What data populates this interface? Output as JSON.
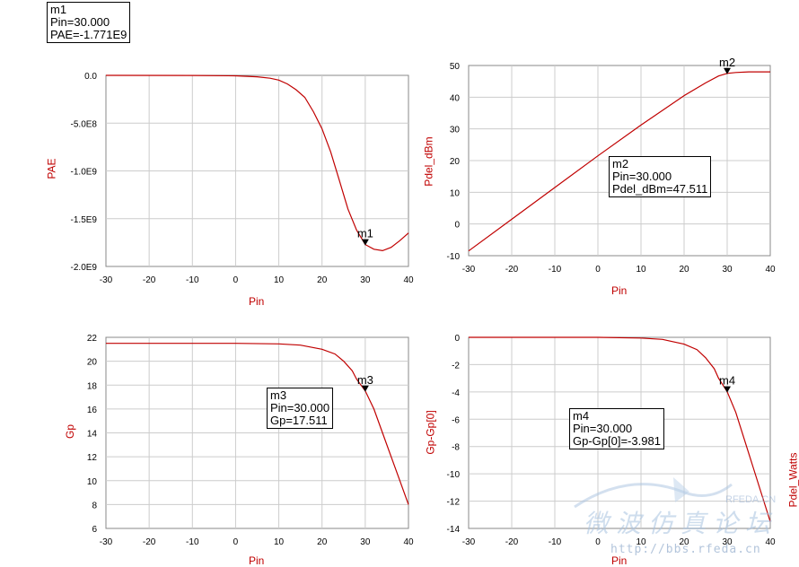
{
  "chart_data": [
    {
      "type": "line",
      "xlabel": "Pin",
      "ylabel": "PAE",
      "xlim": [
        -30,
        40
      ],
      "ylim": [
        -2000000000,
        0
      ],
      "x_ticks": [
        "-30",
        "-20",
        "-10",
        "0",
        "10",
        "20",
        "30",
        "40"
      ],
      "y_ticks": [
        "0.0",
        "-5.0E8",
        "-1.0E9",
        "-1.5E9",
        "-2.0E9"
      ],
      "series": [
        {
          "x": [
            -30,
            -10,
            0,
            5,
            8,
            10,
            12,
            14,
            16,
            18,
            20,
            22,
            24,
            26,
            28,
            30,
            32,
            34,
            36,
            38,
            40
          ],
          "y": [
            0,
            -1000000,
            -5000000,
            -15000000,
            -30000000,
            -50000000,
            -90000000,
            -150000000,
            -230000000,
            -380000000,
            -560000000,
            -800000000,
            -1100000000,
            -1400000000,
            -1620000000,
            -1771000000,
            -1820000000,
            -1835000000,
            -1800000000,
            -1730000000,
            -1650000000
          ]
        }
      ],
      "grid": true,
      "marker": {
        "name": "m1",
        "x": 30,
        "y": -1771000000
      },
      "marker_box": [
        "m1",
        "Pin=30.000",
        "PAE=-1.771E9"
      ]
    },
    {
      "type": "line",
      "xlabel": "Pin",
      "ylabel": "Pdel_dBm",
      "xlim": [
        -30,
        40
      ],
      "ylim": [
        -10,
        50
      ],
      "x_ticks": [
        "-30",
        "-20",
        "-10",
        "0",
        "10",
        "20",
        "30",
        "40"
      ],
      "y_ticks": [
        "50",
        "40",
        "30",
        "20",
        "10",
        "0",
        "-10"
      ],
      "series": [
        {
          "x": [
            -30,
            -20,
            -10,
            0,
            10,
            20,
            25,
            28,
            30,
            32,
            35,
            40
          ],
          "y": [
            -8.5,
            1.5,
            11.5,
            21.5,
            31.2,
            40.5,
            44.5,
            46.7,
            47.5,
            47.8,
            48,
            48
          ]
        }
      ],
      "grid": true,
      "marker": {
        "name": "m2",
        "x": 30,
        "y": 47.511
      },
      "marker_box": [
        "m2",
        "Pin=30.000",
        "Pdel_dBm=47.511"
      ]
    },
    {
      "type": "line",
      "xlabel": "Pin",
      "ylabel": "Gp",
      "xlim": [
        -30,
        40
      ],
      "ylim": [
        6,
        22
      ],
      "x_ticks": [
        "-30",
        "-20",
        "-10",
        "0",
        "10",
        "20",
        "30",
        "40"
      ],
      "y_ticks": [
        "22",
        "20",
        "18",
        "16",
        "14",
        "12",
        "10",
        "8",
        "6"
      ],
      "series": [
        {
          "x": [
            -30,
            -10,
            0,
            10,
            15,
            20,
            23,
            25,
            27,
            28,
            30,
            32,
            34,
            36,
            38,
            40
          ],
          "y": [
            21.5,
            21.5,
            21.5,
            21.45,
            21.35,
            21.0,
            20.6,
            20.0,
            19.2,
            18.5,
            17.511,
            16.0,
            14.0,
            12.0,
            10.0,
            8.0
          ]
        }
      ],
      "grid": true,
      "marker": {
        "name": "m3",
        "x": 30,
        "y": 17.511
      },
      "marker_box": [
        "m3",
        "Pin=30.000",
        "Gp=17.511"
      ]
    },
    {
      "type": "line",
      "xlabel": "Pin",
      "ylabel": "Gp-Gp[0]",
      "xlim": [
        -30,
        40
      ],
      "ylim": [
        -14,
        0
      ],
      "x_ticks": [
        "-30",
        "-20",
        "-10",
        "0",
        "10",
        "20",
        "30",
        "40"
      ],
      "y_ticks": [
        "0",
        "-2",
        "-4",
        "-6",
        "-8",
        "-10",
        "-12",
        "-14"
      ],
      "series": [
        {
          "x": [
            -30,
            -10,
            0,
            10,
            15,
            20,
            23,
            25,
            27,
            28,
            30,
            32,
            34,
            36,
            38,
            40
          ],
          "y": [
            0,
            0,
            0,
            -0.05,
            -0.15,
            -0.5,
            -0.9,
            -1.5,
            -2.3,
            -3.0,
            -3.981,
            -5.5,
            -7.5,
            -9.5,
            -11.5,
            -13.5
          ]
        }
      ],
      "grid": true,
      "marker": {
        "name": "m4",
        "x": 30,
        "y": -3.981
      },
      "marker_box": [
        "m4",
        "Pin=30.000",
        "Gp-Gp[0]=-3.981"
      ]
    }
  ],
  "watermark": {
    "url": "http://bbs.rfeda.cn",
    "logo_text": "微波仿真论坛",
    "small_text": "RFEDA.CN"
  },
  "cutoff_label": "Pdel_Watts",
  "colors": {
    "curve": "#c00000",
    "grid": "#cccccc",
    "axis_label": "#c00000",
    "marker": "#000000"
  }
}
